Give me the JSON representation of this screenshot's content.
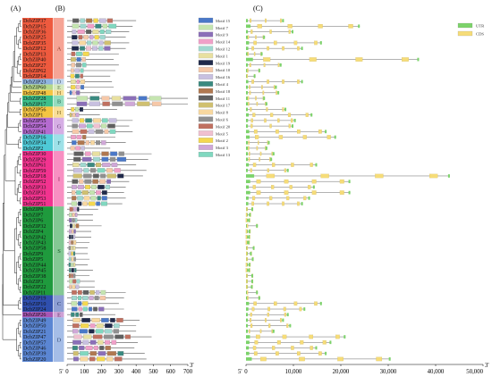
{
  "panel_labels": {
    "a": "(A)",
    "b": "(B)",
    "c": "(C)"
  },
  "genes": [
    "DcbZIP37",
    "DcbZIP15",
    "DcbZIP36",
    "DcbZIP25",
    "DcbZIP35",
    "DcbZIP12",
    "DcbZIP13",
    "DcbZIP40",
    "DcbZIP27",
    "DcbZIP62",
    "DcbZIP14",
    "DcbZIP23",
    "DcbZIP60",
    "DcbZIP48",
    "DcbZIP28",
    "DcbZIP17",
    "DcbZIP56",
    "DcbZIP1",
    "DcbZIP55",
    "DcbZIP54",
    "DcbZIP41",
    "DcbZIP16",
    "DcbZIP34",
    "DcbZIP2",
    "DcbZIP30",
    "DcbZIP29",
    "DcbZIP61",
    "DcbZIP59",
    "DcbZIP18",
    "DcbZIP52",
    "DcbZIP33",
    "DcbZIP31",
    "DcbZIP53",
    "DcbZIP51",
    "DcbZIP8",
    "DcbZIP7",
    "DcbZIP6",
    "DcbZIP32",
    "DcbZIP4",
    "DcbZIP42",
    "DcbZIP43",
    "DcbZIP58",
    "DcbZIP9",
    "DcbZIP5",
    "DcbZIP44",
    "DcbZIP45",
    "DcbZIP38",
    "DcbZIP3",
    "DcbZIP22",
    "DcbZIP11",
    "DcbZIP19",
    "DcbZIP10",
    "DcbZIP24",
    "DcbZIP26",
    "DcbZIP49",
    "DcbZIP50",
    "DcbZIP21",
    "DcbZIP47",
    "DcbZIP57",
    "DcbZIP46",
    "DcbZIP39",
    "DcbZIP20"
  ],
  "groups": [
    {
      "label": "A",
      "start": 0,
      "end": 10,
      "color": "#ee5a3e"
    },
    {
      "label": "D",
      "start": 11,
      "end": 11,
      "color": "#8fb4e0"
    },
    {
      "label": "E",
      "start": 12,
      "end": 12,
      "color": "#b5d98a"
    },
    {
      "label": "H",
      "start": 13,
      "end": 13,
      "color": "#f4c542"
    },
    {
      "label": "B",
      "start": 14,
      "end": 15,
      "color": "#3dbf8a"
    },
    {
      "label": "H",
      "start": 16,
      "end": 17,
      "color": "#f4c542"
    },
    {
      "label": "G",
      "start": 18,
      "end": 20,
      "color": "#b46bd0"
    },
    {
      "label": "F",
      "start": 21,
      "end": 23,
      "color": "#4ec9d6"
    },
    {
      "label": "I",
      "start": 24,
      "end": 33,
      "color": "#f2338f"
    },
    {
      "label": "S",
      "start": 34,
      "end": 49,
      "color": "#1f9a3d"
    },
    {
      "label": "C",
      "start": 50,
      "end": 52,
      "color": "#2f4fae"
    },
    {
      "label": "E",
      "start": 53,
      "end": 53,
      "color": "#a855b5"
    },
    {
      "label": "D",
      "start": 54,
      "end": 61,
      "color": "#5b86d3"
    }
  ],
  "motif_legend": [
    {
      "name": "Motif 15",
      "color": "#4a78c8"
    },
    {
      "name": "Motif 7",
      "color": "#c5e5b0"
    },
    {
      "name": "Motif 9",
      "color": "#8b6fb8"
    },
    {
      "name": "Motif 14",
      "color": "#f0a0c8"
    },
    {
      "name": "Motif 12",
      "color": "#a0d8d0"
    },
    {
      "name": "Motif 1",
      "color": "#e8e0a0"
    },
    {
      "name": "Motif 19",
      "color": "#202a4a"
    },
    {
      "name": "Motif 10",
      "color": "#f6c8a8"
    },
    {
      "name": "Motif 16",
      "color": "#c8c0e0"
    },
    {
      "name": "Motif 4",
      "color": "#3a8a80"
    },
    {
      "name": "Motif 18",
      "color": "#b07850"
    },
    {
      "name": "Motif 11",
      "color": "#606060"
    },
    {
      "name": "Motif 17",
      "color": "#d0c070"
    },
    {
      "name": "Motif 8",
      "color": "#f8d8a0"
    },
    {
      "name": "Motif 6",
      "color": "#909090"
    },
    {
      "name": "Motif 20",
      "color": "#c07060"
    },
    {
      "name": "Motif 5",
      "color": "#f0c0d0"
    },
    {
      "name": "Motif 2",
      "color": "#f4d850"
    },
    {
      "name": "Motif 3",
      "color": "#d0a8d8"
    },
    {
      "name": "Motif 13",
      "color": "#80d8c0"
    }
  ],
  "gene_structure_legend": [
    {
      "name": "UTR",
      "color": "#7cd36a"
    },
    {
      "name": "CDS",
      "color": "#f6dc78"
    }
  ],
  "axis_b": {
    "five_prime": "5'",
    "three_prime": "3'",
    "ticks": [
      "0",
      "100",
      "200",
      "300",
      "400",
      "500",
      "600",
      "700"
    ],
    "range": [
      0,
      700
    ]
  },
  "axis_c": {
    "five_prime": "5'",
    "three_prime": "3'",
    "ticks": [
      "0",
      "10,000",
      "20,000",
      "30,000",
      "40,000",
      "50,000"
    ],
    "range": [
      0,
      50000
    ]
  },
  "protein_lengths": [
    400,
    380,
    360,
    340,
    360,
    340,
    300,
    270,
    300,
    280,
    250,
    260,
    270,
    190,
    700,
    700,
    290,
    190,
    380,
    360,
    380,
    280,
    340,
    250,
    490,
    470,
    400,
    460,
    440,
    360,
    340,
    330,
    340,
    320,
    180,
    150,
    150,
    200,
    140,
    140,
    130,
    120,
    120,
    130,
    120,
    150,
    130,
    160,
    160,
    340,
    330,
    300,
    330,
    280,
    420,
    400,
    400,
    490,
    410,
    390,
    450,
    460
  ],
  "gene_lengths": [
    8000,
    24000,
    10000,
    4000,
    16000,
    12000,
    3500,
    36500,
    7500,
    3000,
    2000,
    12000,
    6500,
    7000,
    4000,
    4500,
    8500,
    14000,
    10500,
    10000,
    17000,
    19000,
    5000,
    4500,
    6000,
    5500,
    15000,
    9000,
    43000,
    22000,
    14500,
    22000,
    13500,
    12000,
    1500,
    1000,
    800,
    2500,
    900,
    800,
    700,
    1800,
    1200,
    1600,
    900,
    800,
    1500,
    1500,
    1400,
    2500,
    3000,
    16000,
    12500,
    9000,
    8000,
    9500,
    6000,
    21000,
    18000,
    15000,
    17000,
    30500
  ]
}
